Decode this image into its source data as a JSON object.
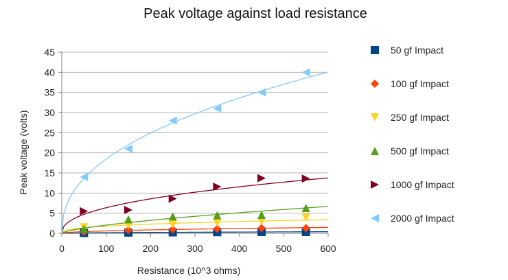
{
  "chart_data": {
    "type": "scatter",
    "title": "Peak voltage against load resistance",
    "xlabel": "Resistance (10^3 ohms)",
    "ylabel": "Peak voltage (volts)",
    "xlim": [
      0,
      600
    ],
    "ylim": [
      0,
      45
    ],
    "xticks": [
      "0",
      "100",
      "200",
      "300",
      "400",
      "500",
      "600"
    ],
    "yticks": [
      "0",
      "5",
      "10",
      "15",
      "20",
      "25",
      "30",
      "35",
      "40",
      "45"
    ],
    "grid": "horizontal",
    "legend": "right",
    "trendlines": "power",
    "series": [
      {
        "name": "50 gf Impact",
        "marker": "square",
        "color": "#004586",
        "x": [
          50,
          150,
          250,
          350,
          450,
          550
        ],
        "y": [
          0.1,
          0.2,
          0.25,
          0.3,
          0.35,
          0.35
        ]
      },
      {
        "name": "100 gf Impact",
        "marker": "diamond",
        "color": "#ff420e",
        "x": [
          50,
          150,
          250,
          350,
          450,
          550
        ],
        "y": [
          0.4,
          0.8,
          1.0,
          1.1,
          1.3,
          1.3
        ]
      },
      {
        "name": "250 gf Impact",
        "marker": "triangle-down",
        "color": "#ffd320",
        "x": [
          50,
          150,
          250,
          350,
          450,
          550
        ],
        "y": [
          1.5,
          2.0,
          2.2,
          2.6,
          3.0,
          3.9
        ]
      },
      {
        "name": "500 gf Impact",
        "marker": "triangle-up",
        "color": "#579d1c",
        "x": [
          50,
          150,
          250,
          350,
          450,
          550
        ],
        "y": [
          1.1,
          3.5,
          4.2,
          4.5,
          4.6,
          6.3
        ]
      },
      {
        "name": "1000 gf Impact",
        "marker": "triangle-right",
        "color": "#7e0021",
        "x": [
          50,
          150,
          250,
          350,
          450,
          550
        ],
        "y": [
          5.5,
          5.8,
          8.6,
          11.6,
          13.7,
          13.6
        ]
      },
      {
        "name": "2000 gf Impact",
        "marker": "triangle-left",
        "color": "#83caff",
        "x": [
          50,
          150,
          250,
          350,
          450,
          550
        ],
        "y": [
          14.0,
          21.0,
          28.0,
          31.0,
          35.0,
          40.0
        ]
      }
    ]
  }
}
